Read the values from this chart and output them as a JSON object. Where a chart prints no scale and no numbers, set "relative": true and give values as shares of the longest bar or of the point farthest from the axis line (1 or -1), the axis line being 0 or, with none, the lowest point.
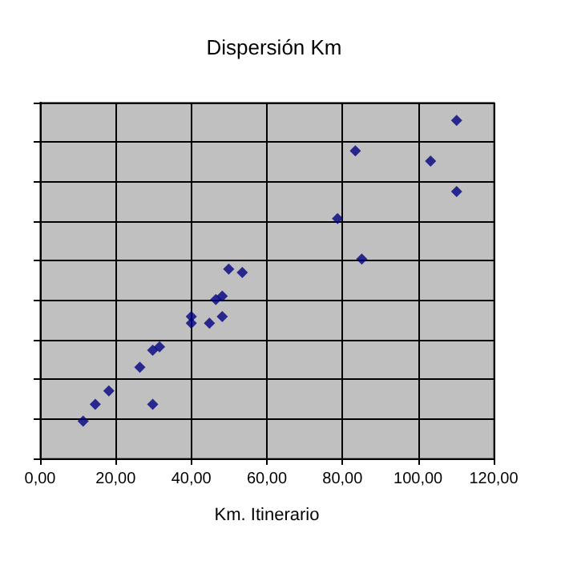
{
  "chart_data": {
    "type": "scatter",
    "title": "Dispersión Km",
    "xlabel": "Km. Itinerario",
    "relative": true,
    "tick_labels": "x",
    "grid": true,
    "marker": "diamond",
    "xlim": [
      0,
      120
    ],
    "xticks": [
      {
        "value": 0,
        "label": "0,00"
      },
      {
        "value": 20,
        "label": "20,00"
      },
      {
        "value": 40,
        "label": "40,00"
      },
      {
        "value": 60,
        "label": "60,00"
      },
      {
        "value": 80,
        "label": "80,00"
      },
      {
        "value": 100,
        "label": "100,00"
      },
      {
        "value": 120,
        "label": "120,00"
      }
    ],
    "series": [
      {
        "color": "#000080",
        "x": [
          11.4,
          14.6,
          18.2,
          26.4,
          29.8,
          29.8,
          31.6,
          40.0,
          40.0,
          44.8,
          46.5,
          48.2,
          48.2,
          49.9,
          53.5,
          78.7,
          83.4,
          85.1,
          103.3,
          110.2,
          110.2
        ],
        "values": [
          0.11,
          0.16,
          0.2,
          0.27,
          0.16,
          0.32,
          0.33,
          0.42,
          0.4,
          0.4,
          0.47,
          0.48,
          0.42,
          0.56,
          0.55,
          0.71,
          0.91,
          0.59,
          0.88,
          1,
          0.79
        ]
      }
    ]
  }
}
